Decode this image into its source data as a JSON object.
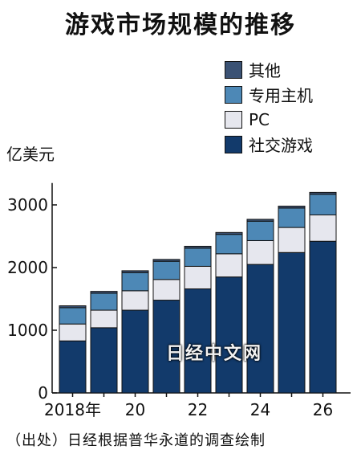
{
  "title": "游戏市场规模的推移",
  "source": "（出处）日经根据普华永道的调查绘制",
  "watermark": "日经中文网",
  "chart_data": {
    "type": "bar",
    "stacked": true,
    "unit_label": "亿美元",
    "categories": [
      "2018",
      "2019",
      "2020",
      "2021",
      "2022",
      "2023",
      "2024",
      "2025",
      "2026"
    ],
    "x_tick_labels": [
      "2018年",
      "",
      "20",
      "",
      "22",
      "",
      "24",
      "",
      "26"
    ],
    "y_ticks": [
      0,
      1000,
      2000,
      3000
    ],
    "ylim": [
      0,
      3350
    ],
    "series": [
      {
        "name": "社交游戏",
        "color": "#123a6b",
        "values": [
          830,
          1040,
          1320,
          1480,
          1660,
          1850,
          2050,
          2240,
          2420
        ]
      },
      {
        "name": "PC",
        "color": "#e6e7ee",
        "values": [
          270,
          280,
          310,
          330,
          360,
          370,
          380,
          400,
          420
        ]
      },
      {
        "name": "专用主机",
        "color": "#4d88b6",
        "values": [
          260,
          270,
          290,
          290,
          290,
          310,
          310,
          310,
          330
        ]
      },
      {
        "name": "其他",
        "color": "#3b5274",
        "values": [
          30,
          30,
          30,
          30,
          30,
          30,
          30,
          30,
          30
        ]
      }
    ],
    "legend_order": [
      "其他",
      "专用主机",
      "PC",
      "社交游戏"
    ],
    "legend_position": "top-right",
    "grid": false
  }
}
